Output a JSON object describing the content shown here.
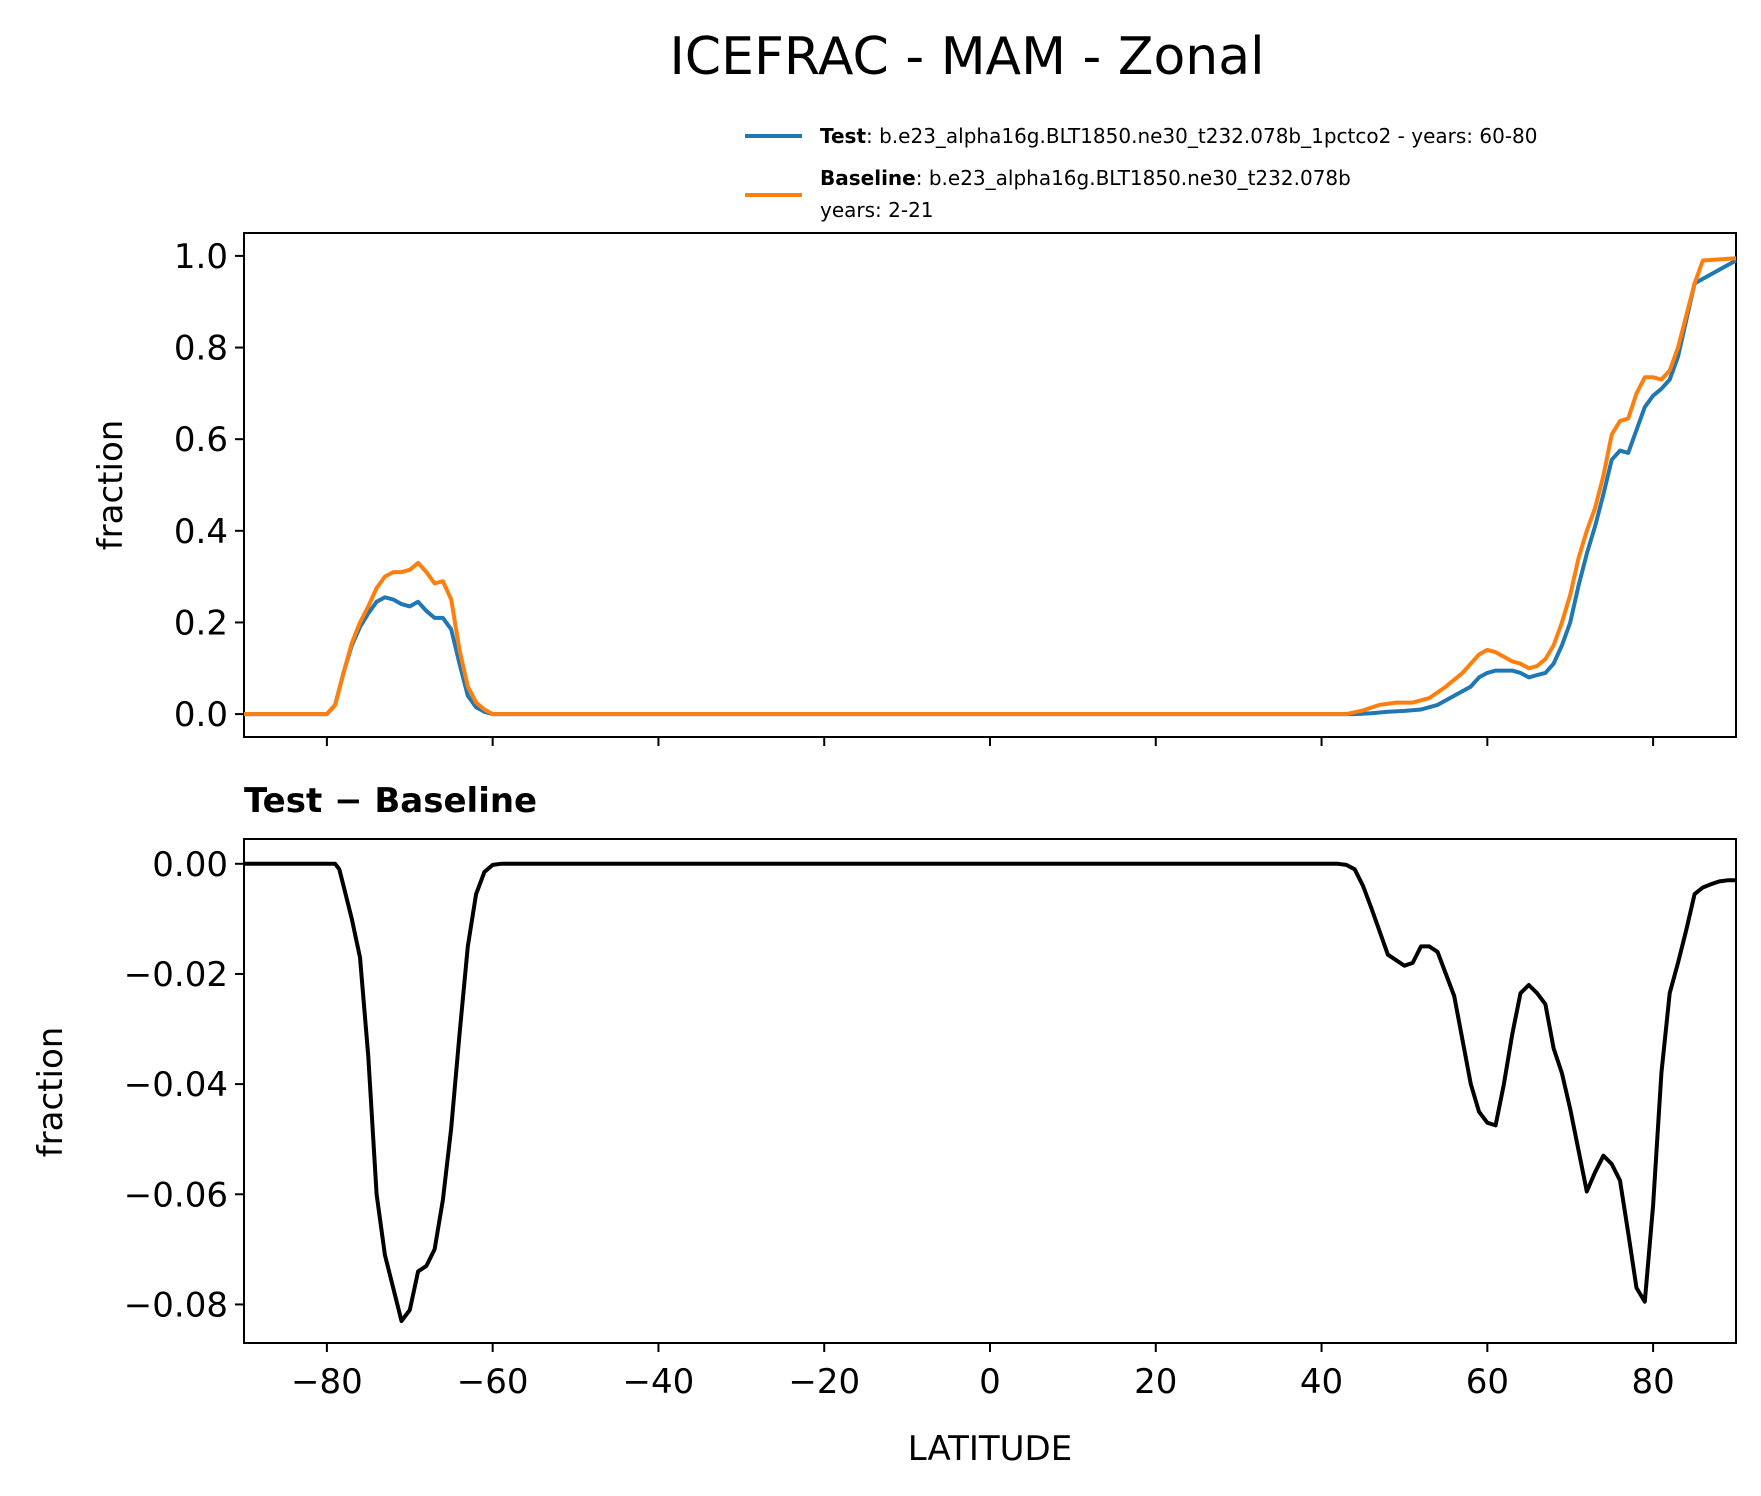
{
  "title": "ICEFRAC - MAM - Zonal",
  "legend": {
    "test_key": "Test",
    "test_text": ": b.e23_alpha16g.BLT1850.ne30_t232.078b_1pctco2 - years: 60-80",
    "baseline_key": "Baseline",
    "baseline_text": ": b.e23_alpha16g.BLT1850.ne30_t232.078b",
    "baseline_years": "years: 2-21"
  },
  "colors": {
    "test": "#1f77b4",
    "baseline": "#ff7f0e",
    "diff": "#000000"
  },
  "chart_data": [
    {
      "type": "line",
      "ylabel": "fraction",
      "xlim": [
        -90,
        90
      ],
      "ylim": [
        -0.05,
        1.05
      ],
      "xticks": [
        -80,
        -60,
        -40,
        -20,
        0,
        20,
        40,
        60,
        80
      ],
      "yticks": [
        0.0,
        0.2,
        0.4,
        0.6,
        0.8,
        1.0
      ],
      "ytick_labels": [
        "0.0",
        "0.2",
        "0.4",
        "0.6",
        "0.8",
        "1.0"
      ],
      "series": [
        {
          "name": "Test",
          "x": [
            -90,
            -80,
            -79,
            -78,
            -77,
            -76,
            -75,
            -74,
            -73,
            -72,
            -71,
            -70,
            -69,
            -68,
            -67,
            -66,
            -65,
            -64,
            -63,
            -62,
            -61,
            -60,
            -58,
            -55,
            40,
            44,
            46,
            48,
            50,
            52,
            54,
            56,
            58,
            59,
            60,
            61,
            62,
            63,
            64,
            65,
            66,
            67,
            68,
            69,
            70,
            71,
            72,
            73,
            74,
            75,
            76,
            77,
            78,
            79,
            80,
            81,
            82,
            83,
            84,
            85,
            90
          ],
          "y": [
            0.0,
            0.0,
            0.02,
            0.09,
            0.15,
            0.19,
            0.22,
            0.245,
            0.255,
            0.25,
            0.24,
            0.235,
            0.245,
            0.225,
            0.21,
            0.21,
            0.185,
            0.11,
            0.04,
            0.015,
            0.005,
            0.0,
            0.0,
            0.0,
            0.0,
            0.0,
            0.002,
            0.005,
            0.007,
            0.01,
            0.02,
            0.04,
            0.06,
            0.08,
            0.09,
            0.095,
            0.095,
            0.095,
            0.09,
            0.08,
            0.085,
            0.09,
            0.11,
            0.15,
            0.2,
            0.28,
            0.35,
            0.41,
            0.48,
            0.555,
            0.575,
            0.57,
            0.62,
            0.67,
            0.695,
            0.71,
            0.73,
            0.78,
            0.86,
            0.94,
            0.99
          ]
        },
        {
          "name": "Baseline",
          "x": [
            -90,
            -80,
            -79,
            -78,
            -77,
            -76,
            -75,
            -74,
            -73,
            -72,
            -71,
            -70,
            -69,
            -68,
            -67,
            -66,
            -65,
            -64,
            -63,
            -62,
            -61,
            -60,
            -58,
            -55,
            40,
            43,
            45,
            47,
            49,
            51,
            53,
            55,
            57,
            58,
            59,
            60,
            61,
            62,
            63,
            64,
            65,
            66,
            67,
            68,
            69,
            70,
            71,
            72,
            73,
            74,
            75,
            76,
            77,
            78,
            79,
            80,
            81,
            82,
            83,
            84,
            85,
            86,
            90
          ],
          "y": [
            0.0,
            0.0,
            0.02,
            0.09,
            0.155,
            0.2,
            0.235,
            0.275,
            0.3,
            0.31,
            0.31,
            0.315,
            0.33,
            0.31,
            0.285,
            0.29,
            0.25,
            0.14,
            0.06,
            0.025,
            0.01,
            0.0,
            0.0,
            0.0,
            0.0,
            0.0,
            0.008,
            0.02,
            0.025,
            0.025,
            0.035,
            0.06,
            0.09,
            0.11,
            0.13,
            0.14,
            0.135,
            0.125,
            0.115,
            0.11,
            0.1,
            0.105,
            0.12,
            0.15,
            0.2,
            0.26,
            0.34,
            0.4,
            0.45,
            0.52,
            0.61,
            0.64,
            0.645,
            0.7,
            0.735,
            0.735,
            0.73,
            0.75,
            0.8,
            0.87,
            0.94,
            0.99,
            0.995
          ]
        }
      ]
    },
    {
      "type": "line",
      "title": "Test − Baseline",
      "ylabel": "fraction",
      "xlabel": "LATITUDE",
      "xlim": [
        -90,
        90
      ],
      "ylim": [
        -0.087,
        0.0045
      ],
      "xticks": [
        -80,
        -60,
        -40,
        -20,
        0,
        20,
        40,
        60,
        80
      ],
      "xtick_labels": [
        "−80",
        "−60",
        "−40",
        "−20",
        "0",
        "20",
        "40",
        "60",
        "80"
      ],
      "yticks": [
        0.0,
        -0.02,
        -0.04,
        -0.06,
        -0.08
      ],
      "ytick_labels": [
        "0.00",
        "−0.02",
        "−0.04",
        "−0.06",
        "−0.08"
      ],
      "series": [
        {
          "name": "Test − Baseline",
          "x": [
            -90,
            -79,
            -78.5,
            -78,
            -77,
            -76,
            -75,
            -74,
            -73,
            -72,
            -71,
            -70,
            -69,
            -68,
            -67,
            -66,
            -65,
            -64,
            -63,
            -62,
            -61,
            -60,
            -59,
            -58,
            -55,
            40,
            42,
            43,
            44,
            45,
            46,
            48,
            50,
            51,
            52,
            53,
            54,
            55,
            56,
            57,
            58,
            59,
            60,
            61,
            62,
            63,
            64,
            65,
            66,
            67,
            68,
            69,
            70,
            71,
            72,
            73,
            74,
            75,
            76,
            77,
            78,
            79,
            80,
            81,
            82,
            83,
            84,
            85,
            86,
            87,
            88,
            89,
            90
          ],
          "y": [
            0.0,
            0.0,
            -0.001,
            -0.004,
            -0.01,
            -0.017,
            -0.035,
            -0.06,
            -0.071,
            -0.077,
            -0.083,
            -0.081,
            -0.074,
            -0.073,
            -0.07,
            -0.061,
            -0.048,
            -0.031,
            -0.015,
            -0.0055,
            -0.0015,
            -0.0002,
            0.0,
            0.0,
            0.0,
            0.0,
            0.0,
            -0.0002,
            -0.001,
            -0.004,
            -0.008,
            -0.0165,
            -0.0185,
            -0.018,
            -0.015,
            -0.015,
            -0.016,
            -0.02,
            -0.024,
            -0.032,
            -0.04,
            -0.045,
            -0.047,
            -0.0475,
            -0.04,
            -0.031,
            -0.0235,
            -0.022,
            -0.0235,
            -0.0255,
            -0.0335,
            -0.038,
            -0.0445,
            -0.052,
            -0.0595,
            -0.056,
            -0.053,
            -0.0545,
            -0.0575,
            -0.067,
            -0.077,
            -0.0795,
            -0.062,
            -0.038,
            -0.0235,
            -0.018,
            -0.012,
            -0.0055,
            -0.0043,
            -0.0037,
            -0.0032,
            -0.003,
            -0.003
          ]
        }
      ]
    }
  ]
}
